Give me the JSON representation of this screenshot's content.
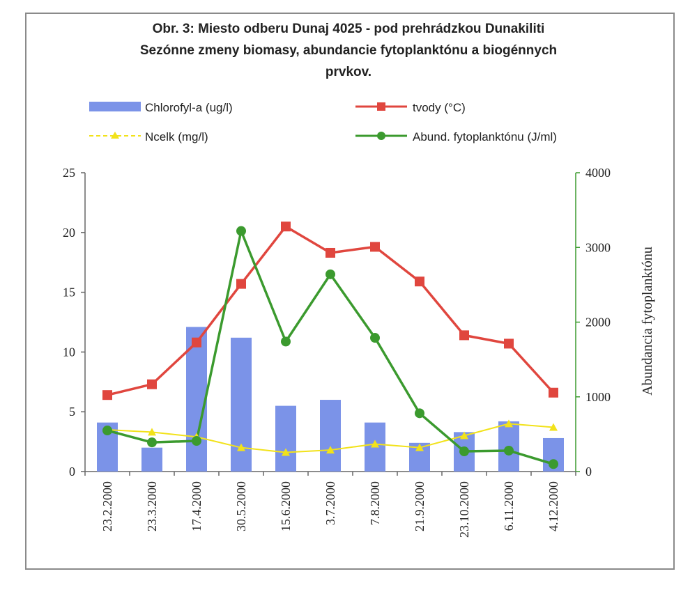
{
  "chart_data": {
    "type": "bar",
    "title": "Obr. 3: Miesto odberu Dunaj 4025 - pod prehrádzkou Dunakiliti",
    "subtitle": "Sezónne zmeny biomasy, abundancie fytoplanktónu a biogénnych",
    "subtitle_line2": "prvkov.",
    "categories": [
      "23.2.2000",
      "23.3.2000",
      "17.4.2000",
      "30.5.2000",
      "15.6.2000",
      "3.7.2000",
      "7.8.2000",
      "21.9.2000",
      "23.10.2000",
      "6.11.2000",
      "4.12.2000"
    ],
    "y_left": {
      "ticks": [
        "0",
        "5",
        "10",
        "15",
        "20",
        "25"
      ],
      "ylim": [
        0,
        25
      ]
    },
    "y_right": {
      "label": "Abundancia fytoplanktónu",
      "ticks": [
        "0",
        "1000",
        "2000",
        "3000",
        "4000"
      ],
      "ylim": [
        0,
        4000
      ]
    },
    "legend_placement": "top",
    "grid": false,
    "series": [
      {
        "name": "Chlorofyl-a (ug/l)",
        "kind": "bar",
        "axis": "left",
        "color": "#7b93e8",
        "values": [
          4.1,
          2.0,
          12.1,
          11.2,
          5.5,
          6.0,
          4.1,
          2.4,
          3.3,
          4.2,
          2.8
        ]
      },
      {
        "name": "tvody (°C)",
        "kind": "line",
        "marker": "square",
        "axis": "left",
        "color": "#e0463e",
        "values": [
          6.4,
          7.3,
          10.8,
          15.7,
          20.5,
          18.3,
          18.8,
          15.9,
          11.4,
          10.7,
          6.6
        ]
      },
      {
        "name": "Ncelk (mg/l)",
        "kind": "line",
        "marker": "triangle",
        "axis": "left",
        "color": "#f2e21a",
        "values": [
          3.5,
          3.3,
          2.9,
          2.0,
          1.6,
          1.8,
          2.3,
          2.0,
          3.0,
          4.0,
          3.7
        ]
      },
      {
        "name": "Abund. fytoplanktónu (J/ml)",
        "kind": "line",
        "marker": "circle",
        "axis": "right",
        "color": "#3b9a2e",
        "values": [
          550,
          390,
          410,
          3220,
          1740,
          2640,
          1790,
          780,
          270,
          280,
          100
        ]
      }
    ]
  }
}
